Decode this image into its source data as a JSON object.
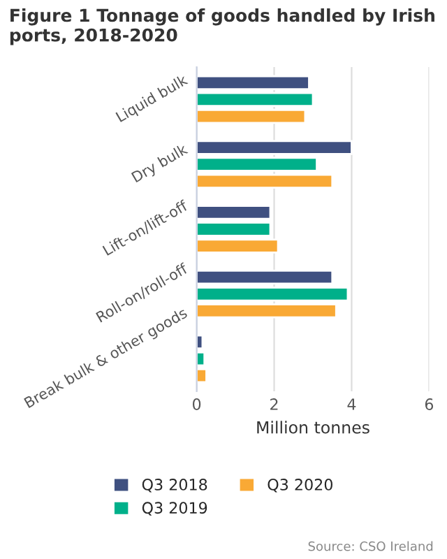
{
  "chart_data": {
    "type": "bar",
    "orientation": "horizontal",
    "title": "Figure 1 Tonnage of goods handled by Irish ports, 2018-2020",
    "xlabel": "Million tonnes",
    "categories": [
      "Liquid bulk",
      "Dry bulk",
      "Lift-on/lift-off",
      "Roll-on/roll-off",
      "Break bulk & other goods"
    ],
    "series": [
      {
        "name": "Q3 2018",
        "color": "#3f5080",
        "values": [
          2.9,
          4.0,
          1.9,
          3.5,
          0.15
        ]
      },
      {
        "name": "Q3 2019",
        "color": "#00b08a",
        "values": [
          3.0,
          3.1,
          1.9,
          3.9,
          0.2
        ]
      },
      {
        "name": "Q3 2020",
        "color": "#f9a935",
        "values": [
          2.8,
          3.5,
          2.1,
          3.6,
          0.25
        ]
      }
    ],
    "xlim": [
      0,
      6
    ],
    "xticks": [
      0,
      2,
      4,
      6
    ],
    "grid": "x",
    "legend": "bottom",
    "annotations": [
      "Source: CSO Ireland"
    ]
  }
}
